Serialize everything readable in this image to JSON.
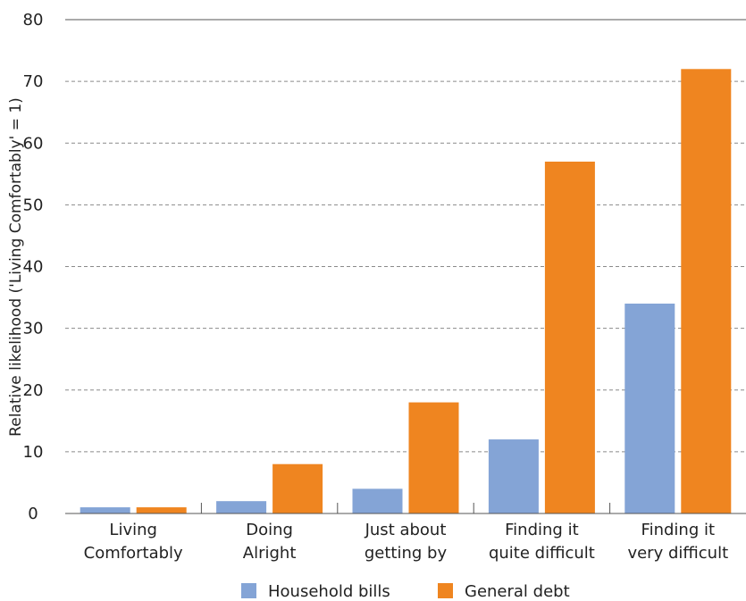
{
  "chart_data": {
    "type": "bar",
    "categories": [
      [
        "Living",
        "Comfortably"
      ],
      [
        "Doing",
        "Alright"
      ],
      [
        "Just about",
        "getting by"
      ],
      [
        "Finding it",
        "quite difficult"
      ],
      [
        "Finding it",
        "very difficult"
      ]
    ],
    "series": [
      {
        "name": "Household bills",
        "color": "#84a4d6",
        "values": [
          1,
          2,
          4,
          12,
          34
        ]
      },
      {
        "name": "General debt",
        "color": "#ef8520",
        "values": [
          1,
          8,
          18,
          57,
          72
        ]
      }
    ],
    "title": "",
    "xlabel": "",
    "ylabel": "Relative likelihood ('Living Comfortably' = 1)",
    "ylim": [
      0,
      80
    ],
    "yticks": [
      0,
      10,
      20,
      30,
      40,
      50,
      60,
      70,
      80
    ],
    "grid": "horizontal-dashed",
    "legend_position": "bottom-center"
  }
}
